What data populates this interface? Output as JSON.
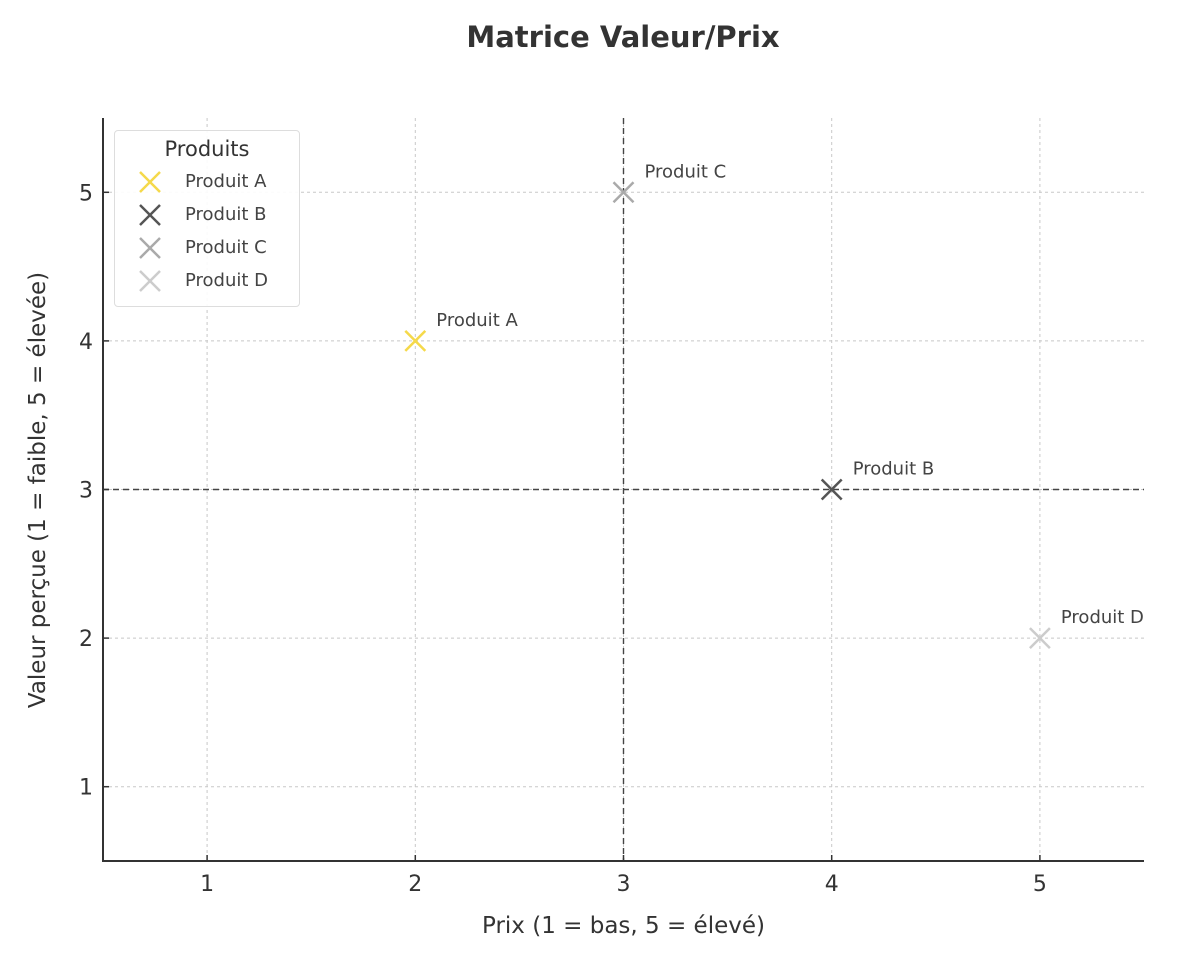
{
  "chart_data": {
    "type": "scatter",
    "title": "Matrice Valeur/Prix",
    "xlabel": "Prix (1 = bas, 5 = élevé)",
    "ylabel": "Valeur perçue (1 = faible, 5 = élevée)",
    "xlim": [
      0.5,
      5.5
    ],
    "ylim": [
      0.5,
      5.5
    ],
    "xticks": [
      1,
      2,
      3,
      4,
      5
    ],
    "yticks": [
      1,
      2,
      3,
      4,
      5
    ],
    "grid": true,
    "marker": "x",
    "reference_lines": [
      {
        "orientation": "vertical",
        "value": 3,
        "style": "dashed",
        "color": "#444444"
      },
      {
        "orientation": "horizontal",
        "value": 3,
        "style": "dashed",
        "color": "#444444"
      }
    ],
    "legend": {
      "title": "Produits",
      "position": "upper left"
    },
    "series": [
      {
        "name": "Produit A",
        "x": 2,
        "y": 4,
        "color": "#f5d94a",
        "annotation": "Produit A"
      },
      {
        "name": "Produit B",
        "x": 4,
        "y": 3,
        "color": "#555555",
        "annotation": "Produit B"
      },
      {
        "name": "Produit C",
        "x": 3,
        "y": 5,
        "color": "#aaaaaa",
        "annotation": "Produit C"
      },
      {
        "name": "Produit D",
        "x": 5,
        "y": 2,
        "color": "#cccccc",
        "annotation": "Produit D"
      }
    ]
  }
}
